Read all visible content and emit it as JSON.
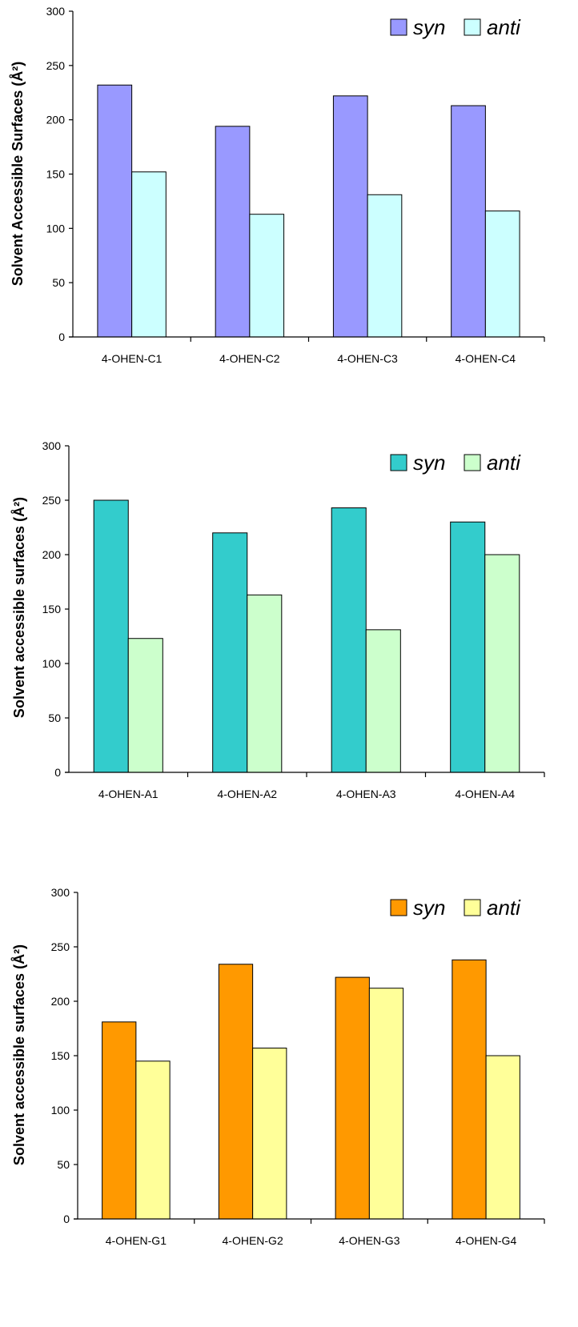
{
  "chart_data": [
    {
      "type": "bar",
      "ylabel": "Solvent Accessible Surfaces (Å²)",
      "ylim": [
        0,
        300
      ],
      "yticks": [
        0,
        50,
        100,
        150,
        200,
        250,
        300
      ],
      "categories": [
        "4-OHEN-C1",
        "4-OHEN-C2",
        "4-OHEN-C3",
        "4-OHEN-C4"
      ],
      "legend_position": "top-right",
      "series": [
        {
          "name": "syn",
          "color": "#9999ff",
          "values": [
            232,
            194,
            222,
            213
          ]
        },
        {
          "name": "anti",
          "color": "#ccffff",
          "values": [
            152,
            113,
            131,
            116
          ]
        }
      ]
    },
    {
      "type": "bar",
      "ylabel": "Solvent accessible surfaces (Å²)",
      "ylim": [
        0,
        300
      ],
      "yticks": [
        0,
        50,
        100,
        150,
        200,
        250,
        300
      ],
      "categories": [
        "4-OHEN-A1",
        "4-OHEN-A2",
        "4-OHEN-A3",
        "4-OHEN-A4"
      ],
      "legend_position": "top-right",
      "series": [
        {
          "name": "syn",
          "color": "#33cccc",
          "values": [
            250,
            220,
            243,
            230
          ]
        },
        {
          "name": "anti",
          "color": "#ccffcc",
          "values": [
            123,
            163,
            131,
            200
          ]
        }
      ]
    },
    {
      "type": "bar",
      "ylabel": "Solvent accessible surfaces (Å²)",
      "ylim": [
        0,
        300
      ],
      "yticks": [
        0,
        50,
        100,
        150,
        200,
        250,
        300
      ],
      "categories": [
        "4-OHEN-G1",
        "4-OHEN-G2",
        "4-OHEN-G3",
        "4-OHEN-G4"
      ],
      "legend_position": "top-right",
      "series": [
        {
          "name": "syn",
          "color": "#ff9900",
          "values": [
            181,
            234,
            222,
            238
          ]
        },
        {
          "name": "anti",
          "color": "#ffff99",
          "values": [
            145,
            157,
            212,
            150
          ]
        }
      ]
    }
  ]
}
